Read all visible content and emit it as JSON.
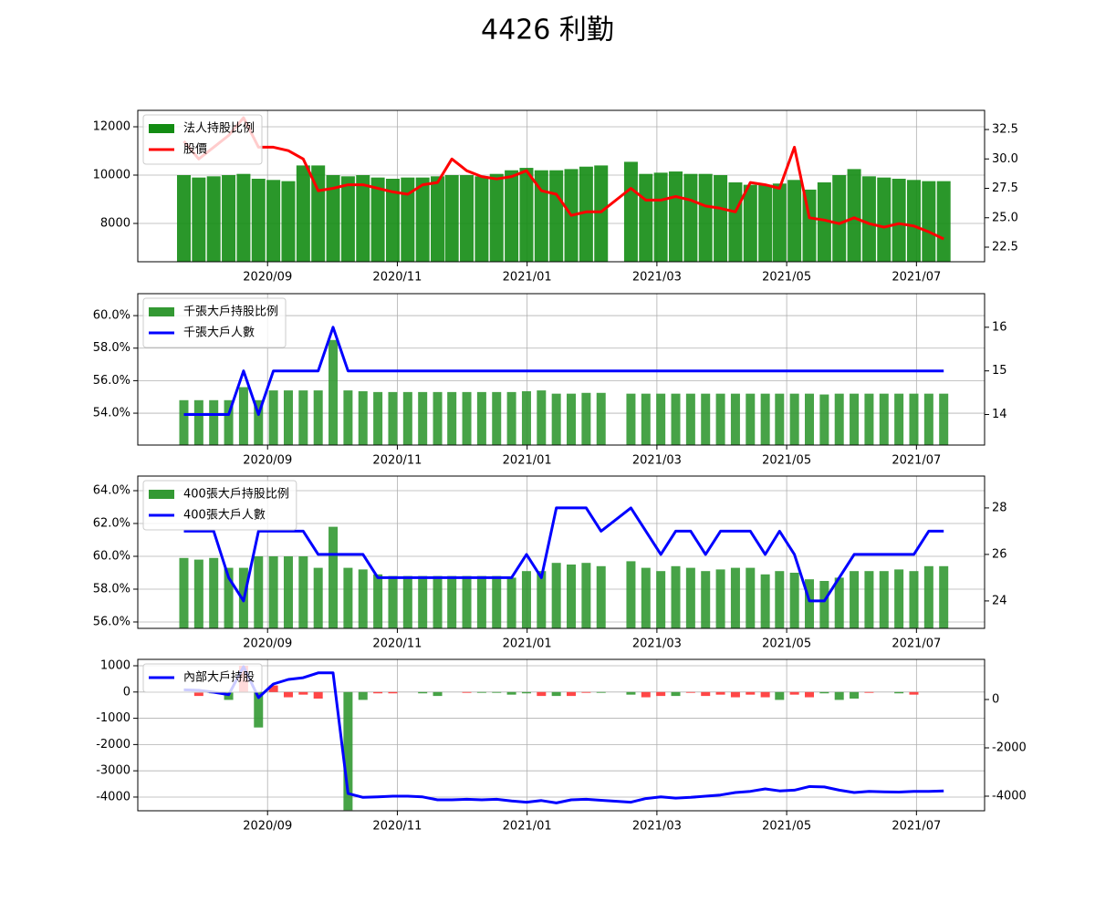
{
  "title": "4426 利勤",
  "chart_data": [
    {
      "type": "bar_line",
      "grid": true,
      "legend": "upper left",
      "x": [
        7.71,
        7.94,
        8.17,
        8.4,
        8.63,
        8.86,
        9.09,
        9.32,
        9.55,
        9.78,
        10.01,
        10.24,
        10.47,
        10.7,
        10.93,
        11.16,
        11.39,
        11.62,
        11.84,
        12.07,
        12.3,
        12.53,
        12.76,
        12.99,
        13.22,
        13.45,
        13.68,
        13.91,
        14.14,
        14.6,
        14.83,
        15.06,
        15.29,
        15.52,
        15.75,
        15.98,
        16.21,
        16.44,
        16.67,
        16.89,
        17.12,
        17.35,
        17.58,
        17.81,
        18.04,
        18.27,
        18.5,
        18.73,
        18.96,
        19.19,
        19.42
      ],
      "xlim": [
        7.0,
        20.05
      ],
      "xticks": [
        {
          "value": 9,
          "label": "2020/09"
        },
        {
          "value": 11,
          "label": "2020/11"
        },
        {
          "value": 13,
          "label": "2021/01"
        },
        {
          "value": 15,
          "label": "2021/03"
        },
        {
          "value": 17,
          "label": "2021/05"
        },
        {
          "value": 19,
          "label": "2021/07"
        }
      ],
      "ylim": [
        6415,
        12680
      ],
      "yticks": [
        8000,
        10000,
        12000
      ],
      "y2lim": [
        21.26,
        34.13
      ],
      "y2ticks": [
        22.5,
        {
          "value": 25,
          "label": "25.0"
        },
        27.5,
        {
          "value": 30,
          "label": "30.0"
        },
        32.5
      ],
      "series": [
        {
          "name": "法人持股比例",
          "type": "bar",
          "color": "#138c13",
          "values": [
            10000,
            9900,
            9950,
            10000,
            10050,
            9850,
            9800,
            9750,
            10400,
            10400,
            10000,
            9950,
            10000,
            9900,
            9850,
            9900,
            9900,
            9950,
            10000,
            10000,
            9950,
            10050,
            10200,
            10300,
            10200,
            10200,
            10250,
            10350,
            10400,
            10550,
            10050,
            10100,
            10150,
            10050,
            10050,
            10000,
            9700,
            9600,
            9600,
            9650,
            9800,
            9400,
            9700,
            10000,
            10250,
            9950,
            9900,
            9850,
            9800,
            9750,
            9750
          ]
        },
        {
          "name": "股價",
          "type": "line",
          "axis": "y2",
          "color": "#ff0000",
          "values": [
            31.5,
            30.0,
            31.0,
            32.0,
            33.5,
            31.0,
            31.0,
            30.7,
            30.0,
            27.3,
            27.5,
            27.8,
            27.8,
            27.5,
            27.2,
            27.0,
            27.8,
            28.0,
            30.0,
            29.0,
            28.5,
            28.3,
            28.5,
            29.0,
            27.3,
            27.0,
            25.2,
            25.5,
            25.5,
            27.5,
            26.5,
            26.5,
            26.8,
            26.5,
            26.0,
            25.8,
            25.5,
            28.0,
            27.8,
            27.5,
            31.0,
            25.0,
            24.8,
            24.5,
            25.0,
            24.5,
            24.2,
            24.5,
            24.3,
            23.8,
            23.2
          ]
        }
      ]
    },
    {
      "type": "bar_line",
      "grid": true,
      "legend": "upper left",
      "x": [
        7.71,
        7.94,
        8.17,
        8.4,
        8.63,
        8.86,
        9.09,
        9.32,
        9.55,
        9.78,
        10.01,
        10.24,
        10.47,
        10.7,
        10.93,
        11.16,
        11.39,
        11.62,
        11.84,
        12.07,
        12.3,
        12.53,
        12.76,
        12.99,
        13.22,
        13.45,
        13.68,
        13.91,
        14.14,
        14.6,
        14.83,
        15.06,
        15.29,
        15.52,
        15.75,
        15.98,
        16.21,
        16.44,
        16.67,
        16.89,
        17.12,
        17.35,
        17.58,
        17.81,
        18.04,
        18.27,
        18.5,
        18.73,
        18.96,
        19.19,
        19.42
      ],
      "xlim": [
        7.0,
        20.05
      ],
      "xticks": [
        {
          "value": 9,
          "label": "2020/09"
        },
        {
          "value": 11,
          "label": "2020/11"
        },
        {
          "value": 13,
          "label": "2021/01"
        },
        {
          "value": 15,
          "label": "2021/03"
        },
        {
          "value": 17,
          "label": "2021/05"
        },
        {
          "value": 19,
          "label": "2021/07"
        }
      ],
      "ylim": [
        52.04,
        61.35
      ],
      "yticks": [
        {
          "value": 54,
          "label": "54.0%"
        },
        {
          "value": 56,
          "label": "56.0%"
        },
        {
          "value": 58,
          "label": "58.0%"
        },
        {
          "value": 60,
          "label": "60.0%"
        }
      ],
      "y2lim": [
        13.3,
        16.77
      ],
      "y2ticks": [
        14,
        15,
        16
      ],
      "series": [
        {
          "name": "千張大戶持股比例",
          "type": "bar",
          "color": "#339933",
          "values": [
            54.8,
            54.8,
            54.8,
            54.8,
            55.6,
            54.8,
            55.4,
            55.4,
            55.4,
            55.4,
            58.5,
            55.4,
            55.35,
            55.3,
            55.3,
            55.3,
            55.3,
            55.3,
            55.3,
            55.3,
            55.3,
            55.3,
            55.3,
            55.35,
            55.4,
            55.2,
            55.2,
            55.25,
            55.25,
            55.2,
            55.2,
            55.2,
            55.2,
            55.2,
            55.2,
            55.2,
            55.2,
            55.2,
            55.2,
            55.2,
            55.2,
            55.2,
            55.15,
            55.2,
            55.2,
            55.2,
            55.2,
            55.2,
            55.2,
            55.2,
            55.2
          ]
        },
        {
          "name": "千張大戶人數",
          "type": "line",
          "axis": "y2",
          "color": "#0000ff",
          "values": [
            14,
            14,
            14,
            14,
            15,
            14,
            15,
            15,
            15,
            15,
            16,
            15,
            15,
            15,
            15,
            15,
            15,
            15,
            15,
            15,
            15,
            15,
            15,
            15,
            15,
            15,
            15,
            15,
            15,
            15,
            15,
            15,
            15,
            15,
            15,
            15,
            15,
            15,
            15,
            15,
            15,
            15,
            15,
            15,
            15,
            15,
            15,
            15,
            15,
            15,
            15
          ]
        }
      ]
    },
    {
      "type": "bar_line",
      "grid": true,
      "legend": "upper left",
      "x": [
        7.71,
        7.94,
        8.17,
        8.4,
        8.63,
        8.86,
        9.09,
        9.32,
        9.55,
        9.78,
        10.01,
        10.24,
        10.47,
        10.7,
        10.93,
        11.16,
        11.39,
        11.62,
        11.84,
        12.07,
        12.3,
        12.53,
        12.76,
        12.99,
        13.22,
        13.45,
        13.68,
        13.91,
        14.14,
        14.6,
        14.83,
        15.06,
        15.29,
        15.52,
        15.75,
        15.98,
        16.21,
        16.44,
        16.67,
        16.89,
        17.12,
        17.35,
        17.58,
        17.81,
        18.04,
        18.27,
        18.5,
        18.73,
        18.96,
        19.19,
        19.42
      ],
      "xlim": [
        7.0,
        20.05
      ],
      "xticks": [
        {
          "value": 9,
          "label": "2020/09"
        },
        {
          "value": 11,
          "label": "2020/11"
        },
        {
          "value": 13,
          "label": "2021/01"
        },
        {
          "value": 15,
          "label": "2021/03"
        },
        {
          "value": 17,
          "label": "2021/05"
        },
        {
          "value": 19,
          "label": "2021/07"
        }
      ],
      "ylim": [
        55.61,
        64.89
      ],
      "yticks": [
        {
          "value": 56,
          "label": "56.0%"
        },
        {
          "value": 58,
          "label": "58.0%"
        },
        {
          "value": 60,
          "label": "60.0%"
        },
        {
          "value": 62,
          "label": "62.0%"
        },
        {
          "value": 64,
          "label": "64.0%"
        }
      ],
      "y2lim": [
        22.82,
        29.37
      ],
      "y2ticks": [
        24,
        26,
        28
      ],
      "series": [
        {
          "name": "400張大戶持股比例",
          "type": "bar",
          "color": "#339933",
          "values": [
            59.9,
            59.8,
            59.9,
            59.3,
            59.3,
            60.0,
            60.0,
            60.0,
            60.0,
            59.3,
            61.8,
            59.3,
            59.2,
            58.9,
            58.8,
            58.8,
            58.8,
            58.8,
            58.8,
            58.8,
            58.8,
            58.8,
            58.7,
            59.1,
            59.1,
            59.6,
            59.5,
            59.6,
            59.4,
            59.7,
            59.3,
            59.1,
            59.4,
            59.3,
            59.1,
            59.2,
            59.3,
            59.3,
            58.9,
            59.1,
            59.0,
            58.6,
            58.5,
            58.7,
            59.1,
            59.1,
            59.1,
            59.2,
            59.1,
            59.4,
            59.4
          ]
        },
        {
          "name": "400張大戶人數",
          "type": "line",
          "axis": "y2",
          "color": "#0000ff",
          "values": [
            27,
            27,
            27,
            25,
            24,
            27,
            27,
            27,
            27,
            26,
            26,
            26,
            26,
            25,
            25,
            25,
            25,
            25,
            25,
            25,
            25,
            25,
            25,
            26,
            25,
            28,
            28,
            28,
            27,
            28,
            27,
            26,
            27,
            27,
            26,
            27,
            27,
            27,
            26,
            27,
            26,
            24,
            24,
            25,
            26,
            26,
            26,
            26,
            26,
            27,
            27
          ]
        }
      ]
    },
    {
      "type": "bar_line",
      "grid": true,
      "legend": "upper left",
      "x": [
        7.71,
        7.94,
        8.17,
        8.4,
        8.63,
        8.86,
        9.09,
        9.32,
        9.55,
        9.78,
        10.01,
        10.24,
        10.47,
        10.7,
        10.93,
        11.16,
        11.39,
        11.62,
        11.84,
        12.07,
        12.3,
        12.53,
        12.76,
        12.99,
        13.22,
        13.45,
        13.68,
        13.91,
        14.14,
        14.6,
        14.83,
        15.06,
        15.29,
        15.52,
        15.75,
        15.98,
        16.21,
        16.44,
        16.67,
        16.89,
        17.12,
        17.35,
        17.58,
        17.81,
        18.04,
        18.27,
        18.5,
        18.73,
        18.96,
        19.19,
        19.42
      ],
      "xlim": [
        7.0,
        20.05
      ],
      "xticks": [
        {
          "value": 9,
          "label": "2020/09"
        },
        {
          "value": 11,
          "label": "2020/11"
        },
        {
          "value": 13,
          "label": "2021/01"
        },
        {
          "value": 15,
          "label": "2021/03"
        },
        {
          "value": 17,
          "label": "2021/05"
        },
        {
          "value": 19,
          "label": "2021/07"
        }
      ],
      "ylim": [
        -4522,
        1243
      ],
      "yticks": [
        1000,
        0,
        -1000,
        -2000,
        -3000,
        -4000
      ],
      "y2lim": [
        -4604,
        1660
      ],
      "y2ticks": [
        0,
        -2000,
        -4000
      ],
      "series": [
        {
          "type": "bar",
          "values": [
            0,
            -150,
            -50,
            -300,
            1000,
            -1350,
            250,
            -200,
            -100,
            -250,
            0,
            -4500,
            -300,
            -50,
            -50,
            0,
            -50,
            -150,
            0,
            -30,
            -30,
            -30,
            -100,
            -50,
            -150,
            -150,
            -150,
            -30,
            -30,
            -100,
            -200,
            -150,
            -150,
            -30,
            -150,
            -100,
            -200,
            -100,
            -200,
            -300,
            -100,
            -200,
            -50,
            -300,
            -250,
            -30,
            0,
            -50,
            -100,
            0,
            0
          ],
          "colors": [
            "#339933",
            "#ff3333",
            "#339933",
            "#339933",
            "#ff3333",
            "#339933",
            "#ff3333",
            "#ff3333",
            "#ff3333",
            "#ff3333",
            "#339933",
            "#339933",
            "#339933",
            "#ff3333",
            "#ff3333",
            "#339933",
            "#339933",
            "#339933",
            "#339933",
            "#ff3333",
            "#339933",
            "#339933",
            "#339933",
            "#339933",
            "#ff3333",
            "#339933",
            "#ff3333",
            "#ff3333",
            "#339933",
            "#339933",
            "#ff3333",
            "#ff3333",
            "#339933",
            "#ff3333",
            "#ff3333",
            "#ff3333",
            "#ff3333",
            "#ff3333",
            "#ff3333",
            "#339933",
            "#ff3333",
            "#ff3333",
            "#339933",
            "#339933",
            "#339933",
            "#ff3333",
            "#339933",
            "#339933",
            "#ff3333",
            "#339933",
            "#339933"
          ]
        },
        {
          "name": "內部大戶持股",
          "type": "line",
          "axis": "y2",
          "color": "#0000ff",
          "values": [
            400,
            380,
            300,
            200,
            1360,
            80,
            640,
            830,
            900,
            1100,
            1100,
            -3890,
            -4050,
            -4030,
            -4000,
            -4000,
            -4030,
            -4150,
            -4150,
            -4130,
            -4150,
            -4130,
            -4200,
            -4250,
            -4180,
            -4280,
            -4150,
            -4130,
            -4170,
            -4250,
            -4100,
            -4030,
            -4080,
            -4050,
            -4000,
            -3950,
            -3850,
            -3800,
            -3700,
            -3780,
            -3750,
            -3600,
            -3620,
            -3750,
            -3850,
            -3800,
            -3820,
            -3830,
            -3800,
            -3800,
            -3780
          ]
        }
      ]
    }
  ]
}
